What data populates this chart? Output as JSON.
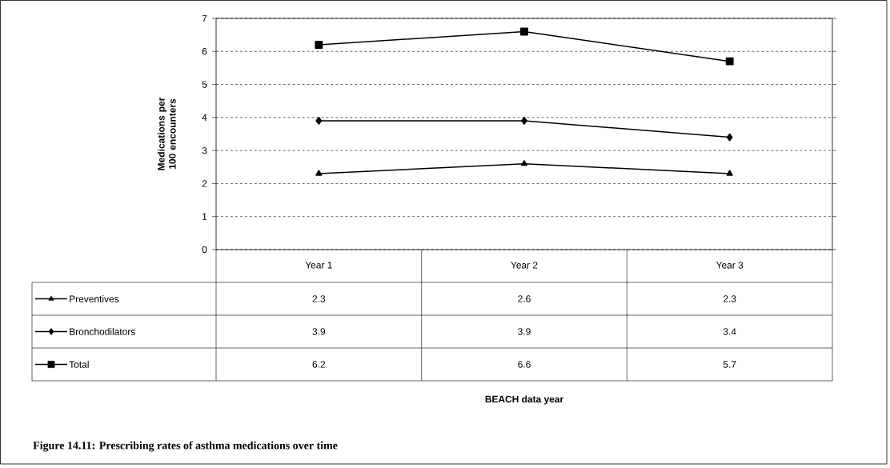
{
  "chart_data": {
    "type": "line",
    "title": "Figure 14.11: Prescribing rates of asthma medications over time",
    "annotations": [
      "BEACH data year"
    ],
    "ylabel": "Medications per 100 encounters",
    "categories": [
      "Year 1",
      "Year 2",
      "Year 3"
    ],
    "series": [
      {
        "name": "Preventives",
        "color": "#000000",
        "marker": "triangle",
        "values": [
          2.3,
          2.6,
          2.3
        ]
      },
      {
        "name": "Bronchodilators",
        "color": "#000000",
        "marker": "diamond",
        "values": [
          3.9,
          3.9,
          3.4
        ]
      },
      {
        "name": "Total",
        "color": "#000000",
        "marker": "square",
        "values": [
          6.2,
          6.6,
          5.7
        ]
      }
    ],
    "ylim": [
      0,
      7
    ],
    "yticks": [
      0,
      1,
      2,
      3,
      4,
      5,
      6,
      7
    ],
    "grid": "y",
    "legend": "bottom",
    "data_labels": true,
    "line_style": "solid"
  }
}
